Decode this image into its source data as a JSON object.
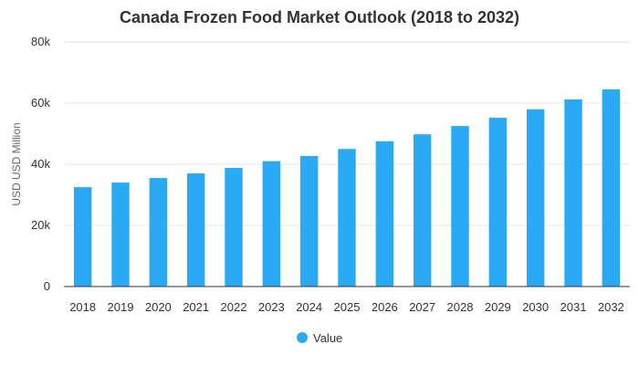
{
  "chart_data": {
    "type": "bar",
    "title": "Canada Frozen Food Market Outlook (2018 to 2032)",
    "xlabel": "",
    "ylabel": "USD USD Million",
    "categories": [
      "2018",
      "2019",
      "2020",
      "2021",
      "2022",
      "2023",
      "2024",
      "2025",
      "2026",
      "2027",
      "2028",
      "2029",
      "2030",
      "2031",
      "2032"
    ],
    "series": [
      {
        "name": "Value",
        "color": "#2aaaf5",
        "values": [
          32500,
          34000,
          35500,
          37000,
          38800,
          41000,
          42700,
          45000,
          47500,
          49800,
          52500,
          55200,
          58000,
          61200,
          64500
        ]
      }
    ],
    "ylim": [
      0,
      80000
    ],
    "yticks": [
      0,
      20000,
      40000,
      60000,
      80000
    ],
    "ytick_labels": [
      "0",
      "20k",
      "40k",
      "60k",
      "80k"
    ],
    "grid": true,
    "legend_position": "bottom-center",
    "colors": {
      "grid": "#e6e6e6",
      "axis": "#333333",
      "text": "#333333"
    }
  }
}
